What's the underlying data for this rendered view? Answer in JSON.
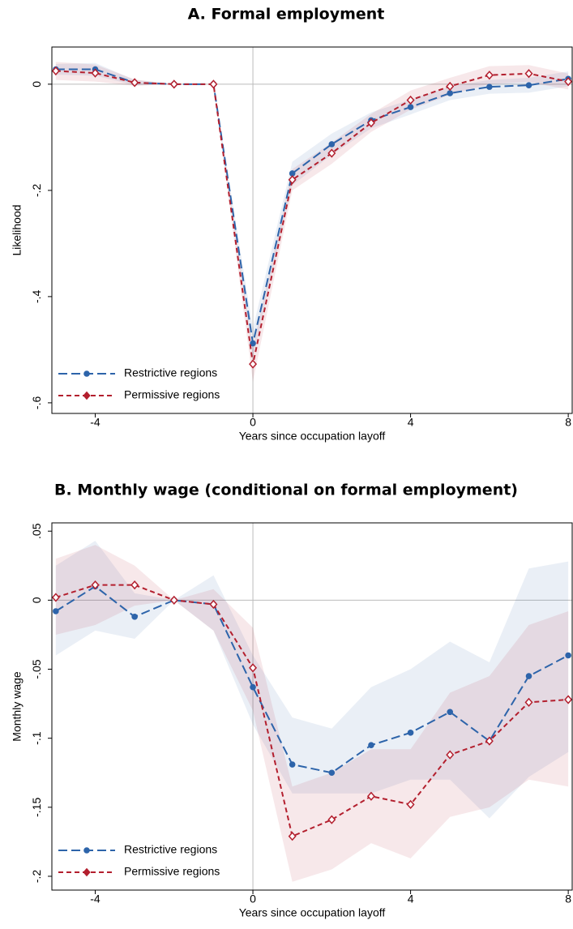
{
  "chart_data": [
    {
      "type": "line",
      "title": "A. Formal employment",
      "xlabel": "Years since occupation layoff",
      "ylabel": "Likelihood",
      "x": [
        -5,
        -4,
        -3,
        -2,
        -1,
        0,
        1,
        2,
        3,
        4,
        5,
        6,
        7,
        8
      ],
      "xlim": [
        -5.1,
        8.1
      ],
      "xticks": [
        -4,
        0,
        4,
        8
      ],
      "ylim": [
        -0.62,
        0.07
      ],
      "yticks": [
        {
          "value": -0.6,
          "label": "-.6"
        },
        {
          "value": -0.4,
          "label": "-.4"
        },
        {
          "value": -0.2,
          "label": "-.2"
        },
        0
      ],
      "vline": 0,
      "hline": 0,
      "legend": "lower left",
      "series": [
        {
          "name": "Restrictive regions",
          "color": "#2d64aa",
          "marker": "circle",
          "line_style": "longdash",
          "values": [
            0.028,
            0.028,
            0.003,
            0,
            0,
            -0.488,
            -0.168,
            -0.113,
            -0.068,
            -0.043,
            -0.017,
            -0.005,
            -0.002,
            0.01
          ],
          "lower": [
            0.018,
            0.016,
            -0.002,
            0,
            0,
            -0.515,
            -0.19,
            -0.133,
            -0.083,
            -0.057,
            -0.03,
            -0.018,
            -0.016,
            -0.004
          ],
          "upper": [
            0.038,
            0.04,
            0.008,
            0,
            0,
            -0.46,
            -0.146,
            -0.093,
            -0.053,
            -0.029,
            -0.004,
            0.008,
            0.012,
            0.024
          ]
        },
        {
          "name": "Permissive regions",
          "color": "#b31f2e",
          "marker": "diamond",
          "line_style": "dash",
          "values": [
            0.025,
            0.021,
            0.003,
            0,
            0,
            -0.527,
            -0.18,
            -0.13,
            -0.073,
            -0.03,
            -0.004,
            0.017,
            0.02,
            0.005
          ],
          "lower": [
            0.008,
            0.005,
            -0.003,
            0,
            0,
            -0.56,
            -0.2,
            -0.15,
            -0.09,
            -0.048,
            -0.02,
            0.0,
            0.004,
            -0.01
          ],
          "upper": [
            0.042,
            0.037,
            0.009,
            0,
            0,
            -0.495,
            -0.16,
            -0.11,
            -0.056,
            -0.012,
            0.012,
            0.034,
            0.036,
            0.02
          ]
        }
      ]
    },
    {
      "type": "line",
      "title": "B. Monthly wage (conditional on formal employment)",
      "xlabel": "Years since occupation layoff",
      "ylabel": "Monthly wage",
      "x": [
        -5,
        -4,
        -3,
        -2,
        -1,
        0,
        1,
        2,
        3,
        4,
        5,
        6,
        7,
        8
      ],
      "xlim": [
        -5.1,
        8.1
      ],
      "xticks": [
        -4,
        0,
        4,
        8
      ],
      "ylim": [
        -0.21,
        0.056
      ],
      "yticks": [
        {
          "value": -0.2,
          "label": "-.2"
        },
        {
          "value": -0.15,
          "label": "-.15"
        },
        {
          "value": -0.1,
          "label": "-.1"
        },
        {
          "value": -0.05,
          "label": "-.05"
        },
        0,
        {
          "value": 0.05,
          "label": ".05"
        }
      ],
      "vline": 0,
      "hline": 0,
      "legend": "lower left",
      "series": [
        {
          "name": "Restrictive regions",
          "color": "#2d64aa",
          "marker": "circle",
          "line_style": "longdash",
          "values": [
            -0.008,
            0.01,
            -0.012,
            0,
            -0.003,
            -0.063,
            -0.119,
            -0.125,
            -0.105,
            -0.096,
            -0.081,
            -0.102,
            -0.055,
            -0.04
          ],
          "lower": [
            -0.04,
            -0.022,
            -0.028,
            0,
            -0.022,
            -0.09,
            -0.14,
            -0.14,
            -0.14,
            -0.13,
            -0.13,
            -0.158,
            -0.128,
            -0.11
          ],
          "upper": [
            0.025,
            0.043,
            0.005,
            0,
            0.018,
            -0.04,
            -0.085,
            -0.093,
            -0.063,
            -0.05,
            -0.03,
            -0.045,
            0.023,
            0.028
          ]
        },
        {
          "name": "Permissive regions",
          "color": "#b31f2e",
          "marker": "diamond",
          "line_style": "dash",
          "values": [
            0.002,
            0.011,
            0.011,
            0,
            -0.003,
            -0.049,
            -0.171,
            -0.159,
            -0.142,
            -0.148,
            -0.112,
            -0.102,
            -0.074,
            -0.072
          ],
          "lower": [
            -0.025,
            -0.018,
            -0.004,
            0,
            -0.022,
            -0.08,
            -0.204,
            -0.195,
            -0.176,
            -0.187,
            -0.157,
            -0.15,
            -0.13,
            -0.135
          ],
          "upper": [
            0.03,
            0.04,
            0.025,
            0,
            0.008,
            -0.02,
            -0.135,
            -0.125,
            -0.108,
            -0.108,
            -0.067,
            -0.055,
            -0.018,
            -0.008
          ]
        }
      ]
    }
  ]
}
